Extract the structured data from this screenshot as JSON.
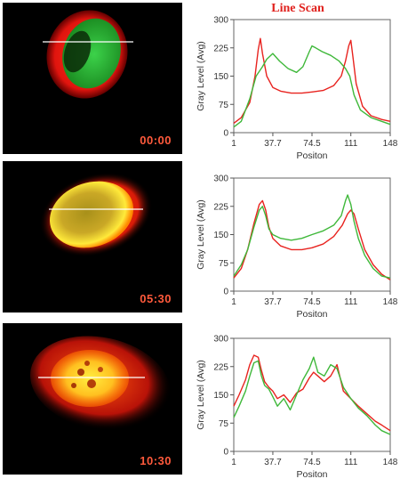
{
  "figure_title": "Line Scan",
  "panels": [
    {
      "timestamp": "00:00"
    },
    {
      "timestamp": "05:30"
    },
    {
      "timestamp": "10:30"
    }
  ],
  "colors": {
    "red_series": "#e8231f",
    "green_series": "#3fb83a",
    "timestamp": "#ff5a3c"
  },
  "chart_data": [
    {
      "type": "line",
      "title": "Line Scan",
      "xlabel": "Positon",
      "ylabel": "Gray Level (Avg)",
      "xlim": [
        1,
        148
      ],
      "ylim": [
        0,
        300
      ],
      "xticks": [
        1,
        37.7,
        74.5,
        111,
        148
      ],
      "yticks": [
        0,
        75,
        150,
        225,
        300
      ],
      "grid": false,
      "series": [
        {
          "color": "#e8231f",
          "x": [
            1,
            8,
            16,
            21,
            24,
            26,
            28,
            32,
            37.7,
            45,
            55,
            65,
            74.5,
            85,
            95,
            102,
            106,
            109,
            111,
            113,
            116,
            122,
            130,
            140,
            148
          ],
          "y": [
            25,
            40,
            80,
            150,
            220,
            250,
            210,
            150,
            120,
            110,
            105,
            105,
            108,
            112,
            125,
            150,
            190,
            230,
            245,
            200,
            130,
            70,
            45,
            35,
            30
          ]
        },
        {
          "color": "#3fb83a",
          "x": [
            1,
            8,
            16,
            22,
            28,
            32,
            37.7,
            44,
            52,
            60,
            66,
            72,
            74.5,
            78,
            84,
            92,
            100,
            106,
            110,
            114,
            120,
            130,
            140,
            148
          ],
          "y": [
            15,
            30,
            90,
            150,
            175,
            195,
            210,
            190,
            170,
            160,
            175,
            215,
            230,
            225,
            215,
            205,
            190,
            170,
            150,
            100,
            60,
            40,
            30,
            22
          ]
        }
      ]
    },
    {
      "type": "line",
      "xlabel": "Positon",
      "ylabel": "Gray Level (Avg)",
      "xlim": [
        1,
        148
      ],
      "ylim": [
        0,
        300
      ],
      "xticks": [
        1,
        37.7,
        74.5,
        111,
        148
      ],
      "yticks": [
        0,
        75,
        150,
        225,
        300
      ],
      "grid": false,
      "series": [
        {
          "color": "#e8231f",
          "x": [
            1,
            8,
            14,
            20,
            25,
            28,
            31,
            34,
            37.7,
            45,
            55,
            65,
            74.5,
            85,
            95,
            103,
            108,
            111,
            114,
            118,
            124,
            132,
            140,
            148
          ],
          "y": [
            35,
            60,
            110,
            180,
            230,
            240,
            215,
            170,
            140,
            120,
            110,
            110,
            115,
            125,
            145,
            175,
            205,
            215,
            205,
            165,
            110,
            70,
            45,
            30
          ]
        },
        {
          "color": "#3fb83a",
          "x": [
            1,
            8,
            14,
            20,
            25,
            28,
            31,
            34,
            37.7,
            45,
            55,
            65,
            74.5,
            85,
            95,
            102,
            106,
            108,
            111,
            114,
            118,
            124,
            132,
            140,
            148
          ],
          "y": [
            40,
            70,
            110,
            170,
            215,
            225,
            200,
            165,
            150,
            140,
            135,
            140,
            150,
            160,
            175,
            200,
            240,
            255,
            230,
            185,
            140,
            95,
            60,
            40,
            35
          ]
        }
      ]
    },
    {
      "type": "line",
      "xlabel": "Positon",
      "ylabel": "Gray Level (Avg)",
      "xlim": [
        1,
        148
      ],
      "ylim": [
        0,
        300
      ],
      "xticks": [
        1,
        37.7,
        74.5,
        111,
        148
      ],
      "yticks": [
        0,
        75,
        150,
        225,
        300
      ],
      "grid": false,
      "series": [
        {
          "color": "#e8231f",
          "x": [
            1,
            6,
            12,
            16,
            20,
            24,
            27,
            30,
            34,
            37.7,
            42,
            48,
            54,
            60,
            66,
            72,
            76,
            80,
            86,
            92,
            98,
            104,
            111,
            118,
            126,
            134,
            140,
            148
          ],
          "y": [
            120,
            150,
            190,
            230,
            255,
            250,
            215,
            185,
            170,
            160,
            140,
            150,
            130,
            155,
            165,
            195,
            210,
            200,
            185,
            200,
            230,
            160,
            140,
            120,
            100,
            80,
            70,
            55
          ]
        },
        {
          "color": "#3fb83a",
          "x": [
            1,
            6,
            12,
            16,
            20,
            24,
            27,
            30,
            34,
            37.7,
            42,
            48,
            54,
            60,
            66,
            72,
            76,
            80,
            86,
            92,
            98,
            104,
            111,
            118,
            126,
            134,
            140,
            148
          ],
          "y": [
            90,
            120,
            160,
            200,
            235,
            240,
            200,
            175,
            165,
            145,
            120,
            140,
            110,
            150,
            190,
            220,
            250,
            210,
            200,
            230,
            220,
            170,
            140,
            115,
            95,
            70,
            55,
            45
          ]
        }
      ]
    }
  ]
}
